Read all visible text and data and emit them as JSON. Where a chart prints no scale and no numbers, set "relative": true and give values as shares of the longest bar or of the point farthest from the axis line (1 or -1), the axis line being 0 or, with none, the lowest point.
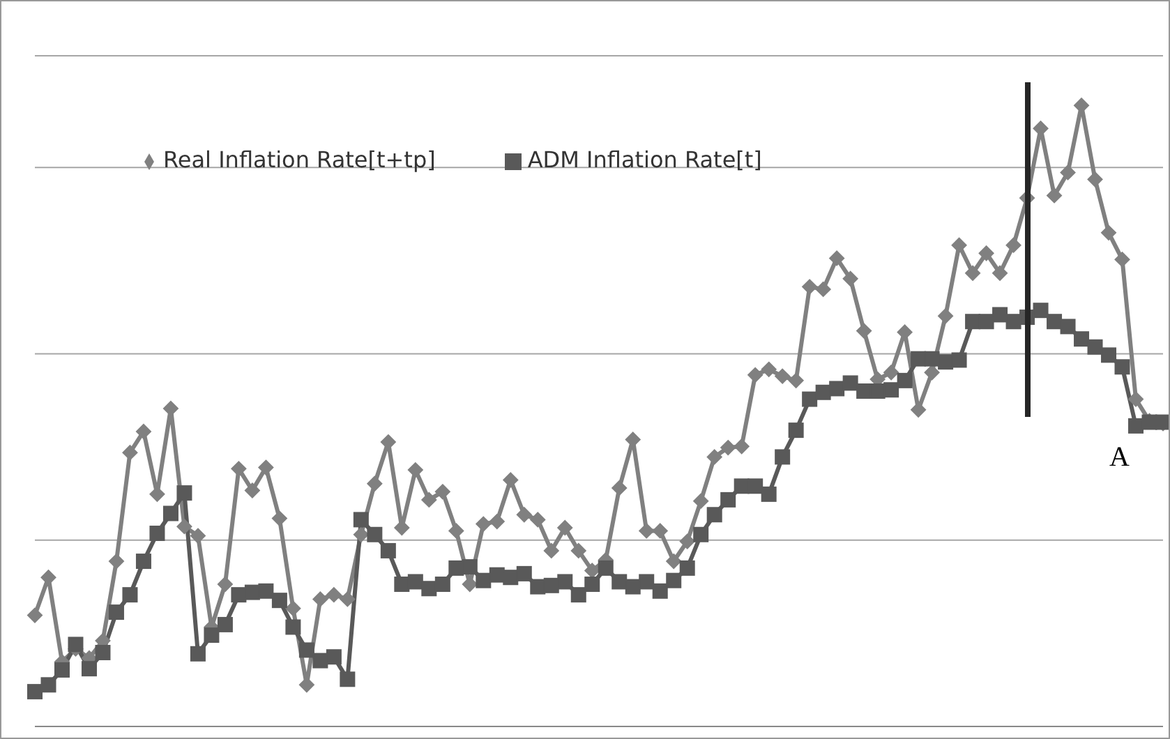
{
  "chart_data": {
    "type": "line",
    "relative": true,
    "grid": "y",
    "legend": "top",
    "line_style": "solid",
    "categories": [
      null,
      null,
      null,
      null,
      null,
      null,
      null,
      null,
      null,
      null,
      null,
      null,
      null,
      null,
      null,
      null,
      null,
      null,
      null,
      null,
      null,
      null,
      null,
      null,
      null,
      null,
      null,
      null,
      null,
      null,
      null,
      null,
      null,
      null,
      null,
      null,
      null,
      null,
      null,
      null,
      null,
      null,
      null,
      null,
      null,
      null,
      null,
      null,
      null,
      null,
      null,
      null,
      null,
      null,
      null,
      null,
      null,
      null,
      null,
      null,
      null,
      null,
      null,
      null,
      null,
      null,
      null,
      null,
      null,
      null,
      null,
      null,
      null,
      null,
      null,
      null,
      null,
      null,
      null,
      null,
      null,
      null,
      null,
      null
    ],
    "series": [
      {
        "name": "Real Inflation Rate[t+tp]",
        "color": "#808080",
        "marker": "diamond",
        "values": [
          0.179,
          0.24,
          0.104,
          0.125,
          0.11,
          0.138,
          0.266,
          0.441,
          0.475,
          0.374,
          0.512,
          0.322,
          0.307,
          0.16,
          0.229,
          0.415,
          0.38,
          0.417,
          0.335,
          0.19,
          0.067,
          0.205,
          0.212,
          0.205,
          0.309,
          0.391,
          0.458,
          0.32,
          0.413,
          0.365,
          0.378,
          0.315,
          0.229,
          0.326,
          0.33,
          0.397,
          0.341,
          0.333,
          0.283,
          0.32,
          0.283,
          0.251,
          0.268,
          0.384,
          0.462,
          0.315,
          0.315,
          0.266,
          0.298,
          0.363,
          0.434,
          0.449,
          0.451,
          0.566,
          0.575,
          0.564,
          0.557,
          0.708,
          0.704,
          0.754,
          0.721,
          0.637,
          0.559,
          0.57,
          0.635,
          0.51,
          0.57,
          0.661,
          0.775,
          0.73,
          0.762,
          0.73,
          0.775,
          0.851,
          0.963,
          0.855,
          0.892,
          1,
          0.881,
          0.795,
          0.752,
          0.527,
          0.492,
          0.488
        ]
      },
      {
        "name": "ADM Inflation Rate[t]",
        "color": "#595959",
        "marker": "square",
        "values": [
          0.056,
          0.067,
          0.091,
          0.132,
          0.093,
          0.119,
          0.184,
          0.212,
          0.266,
          0.311,
          0.343,
          0.376,
          0.117,
          0.147,
          0.164,
          0.212,
          0.216,
          0.218,
          0.203,
          0.16,
          0.123,
          0.106,
          0.112,
          0.076,
          0.333,
          0.309,
          0.283,
          0.229,
          0.233,
          0.222,
          0.229,
          0.255,
          0.257,
          0.235,
          0.244,
          0.24,
          0.246,
          0.225,
          0.227,
          0.233,
          0.212,
          0.229,
          0.255,
          0.233,
          0.225,
          0.233,
          0.218,
          0.235,
          0.255,
          0.309,
          0.341,
          0.365,
          0.387,
          0.387,
          0.374,
          0.434,
          0.477,
          0.527,
          0.538,
          0.544,
          0.553,
          0.54,
          0.54,
          0.542,
          0.557,
          0.592,
          0.592,
          0.587,
          0.59,
          0.652,
          0.652,
          0.663,
          0.652,
          0.659,
          0.67,
          0.652,
          0.644,
          0.624,
          0.611,
          0.598,
          0.579,
          0.484,
          0.49,
          0.49
        ]
      }
    ],
    "annotations": [
      "A"
    ]
  }
}
